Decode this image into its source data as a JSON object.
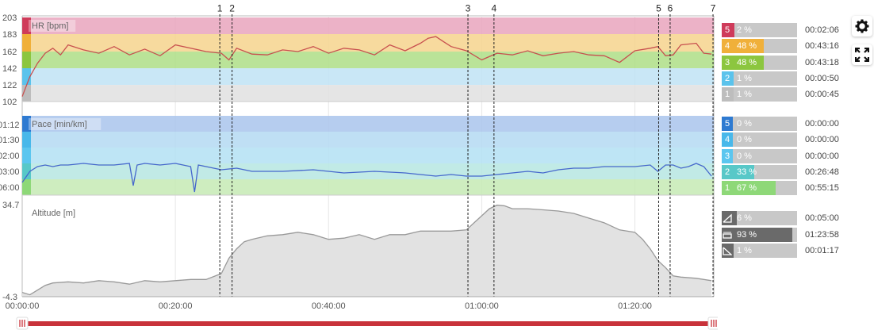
{
  "chart_data": {
    "type": "line",
    "x_ticks": [
      "00:00:00",
      "00:20:00",
      "00:40:00",
      "01:00:00",
      "01:20:00"
    ],
    "x_tick_minutes": [
      0,
      20,
      40,
      60,
      80
    ],
    "x_max_minutes": 90.3,
    "markers": [
      {
        "label": "1",
        "minute": 25.8
      },
      {
        "label": "2",
        "minute": 27.4
      },
      {
        "label": "3",
        "minute": 58.2
      },
      {
        "label": "4",
        "minute": 61.6
      },
      {
        "label": "5",
        "minute": 83.1
      },
      {
        "label": "6",
        "minute": 84.6
      },
      {
        "label": "7",
        "minute": 90.2
      }
    ],
    "panels": [
      {
        "id": "hr",
        "title": "HR [bpm]",
        "y_ticks": [
          "203",
          "183",
          "162",
          "142",
          "122",
          "102"
        ],
        "y_tick_values": [
          203,
          183,
          162,
          142,
          122,
          102
        ],
        "ylim": [
          102,
          203
        ],
        "bands": [
          [
            183,
            203
          ],
          [
            162,
            183
          ],
          [
            142,
            162
          ],
          [
            122,
            142
          ],
          [
            102,
            122
          ]
        ],
        "series_color": "#c8504f",
        "x": [
          0,
          1,
          2,
          3,
          4,
          5,
          6,
          8,
          10,
          12,
          14,
          16,
          18,
          20,
          22,
          24,
          26,
          27,
          28,
          30,
          32,
          34,
          36,
          38,
          40,
          42,
          44,
          46,
          48,
          50,
          52,
          53,
          54,
          55,
          56,
          58,
          60,
          62,
          64,
          66,
          68,
          70,
          72,
          74,
          76,
          78,
          80,
          82,
          83,
          84,
          85,
          86,
          88,
          89,
          90
        ],
        "values": [
          108,
          132,
          148,
          160,
          166,
          158,
          170,
          164,
          160,
          168,
          158,
          165,
          157,
          170,
          166,
          162,
          160,
          152,
          166,
          159,
          158,
          164,
          162,
          168,
          160,
          166,
          164,
          158,
          170,
          163,
          172,
          178,
          180,
          174,
          168,
          163,
          152,
          160,
          158,
          163,
          157,
          160,
          162,
          158,
          157,
          149,
          163,
          166,
          168,
          157,
          158,
          170,
          172,
          160,
          159
        ]
      },
      {
        "id": "pace",
        "title": "Pace [min/km]",
        "y_ticks": [
          "01:12",
          "01:30",
          "02:00",
          "03:00",
          "06:00"
        ],
        "ylim": [
          0,
          5
        ],
        "bands": [
          [
            4,
            5
          ],
          [
            3,
            4
          ],
          [
            2,
            3
          ],
          [
            1,
            2
          ],
          [
            0,
            1
          ]
        ],
        "series_color": "#4567cd",
        "x": [
          0,
          1,
          2,
          3,
          4,
          5,
          6,
          8,
          10,
          12,
          14,
          14.5,
          15,
          16,
          18,
          20,
          21,
          22,
          22.5,
          23,
          24,
          26,
          28,
          30,
          34,
          38,
          42,
          46,
          50,
          52,
          54,
          56,
          58,
          60,
          62,
          64,
          66,
          68,
          70,
          72,
          74,
          76,
          78,
          80,
          82,
          83,
          84,
          85,
          86,
          87,
          88,
          89,
          90
        ],
        "values": [
          0.8,
          1.5,
          1.8,
          1.9,
          1.8,
          1.9,
          1.9,
          2.0,
          1.9,
          1.9,
          2.0,
          0.6,
          1.9,
          2.0,
          1.9,
          2.0,
          1.9,
          1.8,
          0.2,
          1.9,
          1.8,
          1.6,
          1.7,
          1.5,
          1.5,
          1.6,
          1.4,
          1.5,
          1.4,
          1.3,
          1.2,
          1.3,
          1.2,
          1.2,
          1.3,
          1.4,
          1.5,
          1.4,
          1.6,
          1.7,
          1.7,
          1.8,
          1.8,
          1.8,
          1.9,
          1.5,
          1.9,
          1.9,
          1.7,
          1.8,
          2.0,
          1.8,
          1.2
        ]
      },
      {
        "id": "alt",
        "title": "Altitude [m]",
        "y_ticks": [
          "34.7",
          "-4.3"
        ],
        "y_tick_values": [
          34.7,
          -4.3
        ],
        "ylim": [
          -4.3,
          34.7
        ],
        "series_color": "#999999",
        "x": [
          0,
          1,
          2,
          3,
          4,
          6,
          8,
          10,
          12,
          14,
          16,
          18,
          20,
          22,
          24,
          26,
          27,
          28,
          29,
          30,
          32,
          34,
          36,
          38,
          40,
          42,
          44,
          46,
          48,
          50,
          52,
          54,
          56,
          58,
          59,
          60,
          61,
          62,
          63,
          64,
          66,
          68,
          70,
          72,
          74,
          76,
          78,
          80,
          81,
          82,
          83,
          84,
          85,
          86,
          88,
          90
        ],
        "values": [
          -2.5,
          -3.5,
          -1.5,
          0.5,
          1.5,
          2.0,
          1.5,
          2.5,
          2.0,
          1.0,
          2.5,
          2.0,
          2.5,
          3.0,
          3.0,
          5.5,
          12,
          16,
          19,
          20,
          21.5,
          22,
          23,
          22,
          20,
          20.5,
          22,
          20,
          22,
          22,
          23.5,
          23.5,
          23.5,
          24,
          27,
          30,
          33,
          34.5,
          34.2,
          33,
          33,
          32.5,
          32,
          31,
          29,
          27,
          24,
          23,
          20,
          16,
          11,
          8,
          4.5,
          4,
          3.5,
          2.5
        ]
      }
    ]
  },
  "zones": {
    "hr": [
      {
        "num": "5",
        "pct": "2 %",
        "time": "00:02:06",
        "color": "#cf3b5a",
        "fraction": 0.02
      },
      {
        "num": "4",
        "pct": "48 %",
        "time": "00:43:16",
        "color": "#f0b03a",
        "fraction": 0.48
      },
      {
        "num": "3",
        "pct": "48 %",
        "time": "00:43:18",
        "color": "#8cc63f",
        "fraction": 0.48
      },
      {
        "num": "2",
        "pct": "1 %",
        "time": "00:00:50",
        "color": "#5bc3ec",
        "fraction": 0.01
      },
      {
        "num": "1",
        "pct": "1 %",
        "time": "00:00:45",
        "color": "#bdbdbd",
        "fraction": 0.01
      }
    ],
    "pace": [
      {
        "num": "5",
        "pct": "0 %",
        "time": "00:00:00",
        "color": "#2e7ad1",
        "fraction": 0
      },
      {
        "num": "4",
        "pct": "0 %",
        "time": "00:00:00",
        "color": "#48b8ea",
        "fraction": 0
      },
      {
        "num": "3",
        "pct": "0 %",
        "time": "00:00:00",
        "color": "#5bc6ef",
        "fraction": 0
      },
      {
        "num": "2",
        "pct": "33 %",
        "time": "00:26:48",
        "color": "#58c8c8",
        "fraction": 0.33
      },
      {
        "num": "1",
        "pct": "67 %",
        "time": "00:55:15",
        "color": "#8ed878",
        "fraction": 0.67
      }
    ],
    "alt": [
      {
        "icon": "uphill-icon",
        "pct": "6 %",
        "time": "00:05:00",
        "color": "#6a6a6a",
        "fraction": 0.06
      },
      {
        "icon": "flat-icon",
        "pct": "93 %",
        "time": "01:23:58",
        "color": "#6a6a6a",
        "fraction": 0.93
      },
      {
        "icon": "downhill-icon",
        "pct": "1 %",
        "time": "00:01:17",
        "color": "#6a6a6a",
        "fraction": 0.01
      }
    ]
  },
  "tools": {
    "settings_icon": "gear-icon",
    "fullscreen_icon": "expand-icon"
  },
  "range_slider": {
    "color": "#c8323a",
    "start_fraction": 0,
    "end_fraction": 1
  }
}
